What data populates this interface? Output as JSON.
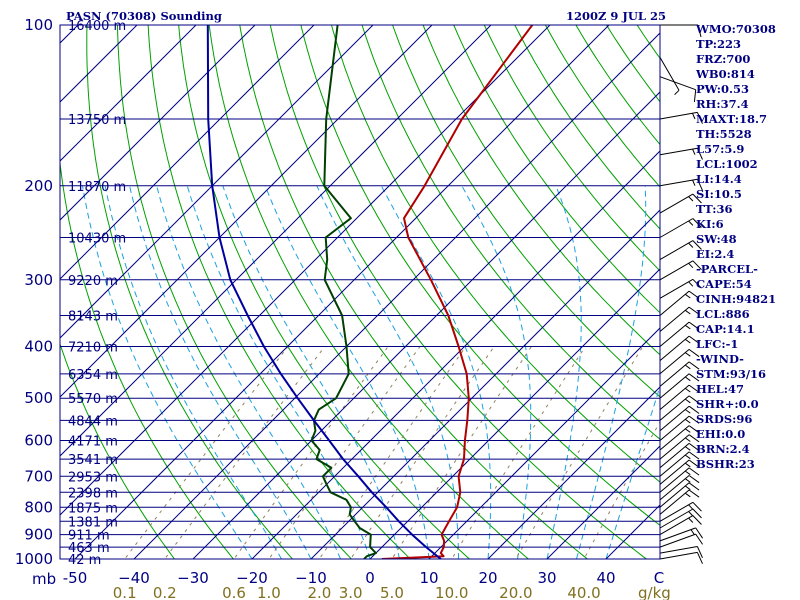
{
  "header": {
    "title": "PASN (70308) Sounding",
    "datetime": "1200Z  9 JUL 25"
  },
  "colors": {
    "isobar": "#000080",
    "isotherm": "#000080",
    "dry_adiabat": "#00a000",
    "moist_adiabat": "#1ca0e0",
    "mixing_ratio": "#908060",
    "temperature": "#b00000",
    "dewpoint": "#004000",
    "parcel": "#0000a0",
    "axis_text": "#000080",
    "mixing_text": "#807020"
  },
  "chart_data": {
    "type": "skew-t",
    "title": "PASN (70308) Sounding",
    "pressure_unit_label": "mb",
    "mixing_unit_label": "g/kg",
    "pressure_ticks": [
      100,
      200,
      300,
      400,
      500,
      600,
      700,
      800,
      900,
      1000
    ],
    "pressure_tick_labels": [
      "100",
      "200",
      "300",
      "400",
      "500",
      "600",
      "700",
      "800",
      "900",
      "1000"
    ],
    "temperature_ticks": [
      -50,
      -40,
      -30,
      -20,
      -10,
      0,
      10,
      20,
      30,
      40
    ],
    "temperature_tick_labels": [
      "-50",
      "−40",
      "−30",
      "−20",
      "−10",
      "0",
      "10",
      "20",
      "30",
      "40"
    ],
    "temperature_end_label": "C",
    "mixing_ratio_ticks": [
      0.1,
      0.2,
      0.6,
      1.0,
      2.0,
      3.0,
      5.0,
      10.0,
      20.0,
      40.0
    ],
    "mixing_ratio_tick_labels": [
      "0.1",
      "0.2",
      "0.6",
      "1.0",
      "2.0",
      "3.0",
      "5.0",
      "10.0",
      "20.0",
      "40.0"
    ],
    "height_levels": [
      {
        "p": 100,
        "label": "16400 m"
      },
      {
        "p": 150,
        "label": "13750 m"
      },
      {
        "p": 200,
        "label": "11870 m"
      },
      {
        "p": 250,
        "label": "10430 m"
      },
      {
        "p": 300,
        "label": "9220 m"
      },
      {
        "p": 350,
        "label": "8143 m"
      },
      {
        "p": 400,
        "label": "7210 m"
      },
      {
        "p": 450,
        "label": "6354 m"
      },
      {
        "p": 500,
        "label": "5570 m"
      },
      {
        "p": 550,
        "label": "4844 m"
      },
      {
        "p": 600,
        "label": "4171 m"
      },
      {
        "p": 650,
        "label": "3541 m"
      },
      {
        "p": 700,
        "label": "2953 m"
      },
      {
        "p": 750,
        "label": "2398 m"
      },
      {
        "p": 800,
        "label": "1875 m"
      },
      {
        "p": 850,
        "label": "1381 m"
      },
      {
        "p": 900,
        "label": "911 m"
      },
      {
        "p": 950,
        "label": "463 m"
      },
      {
        "p": 1000,
        "label": "42 m"
      }
    ],
    "series": [
      {
        "kind": "temperature",
        "points": [
          [
            1000,
            2
          ],
          [
            988,
            12
          ],
          [
            975,
            11
          ],
          [
            950,
            10.5
          ],
          [
            925,
            9.5
          ],
          [
            900,
            8
          ],
          [
            850,
            7
          ],
          [
            800,
            6
          ],
          [
            750,
            4
          ],
          [
            700,
            1
          ],
          [
            650,
            -1
          ],
          [
            600,
            -4
          ],
          [
            550,
            -7
          ],
          [
            500,
            -10.5
          ],
          [
            450,
            -15
          ],
          [
            400,
            -21
          ],
          [
            350,
            -28
          ],
          [
            300,
            -37
          ],
          [
            250,
            -48
          ],
          [
            230,
            -52
          ],
          [
            200,
            -54
          ],
          [
            150,
            -59
          ],
          [
            100,
            -63
          ]
        ]
      },
      {
        "kind": "dewpoint",
        "points": [
          [
            1000,
            -1
          ],
          [
            988,
            -1
          ],
          [
            975,
            0
          ],
          [
            950,
            -2
          ],
          [
            925,
            -3
          ],
          [
            900,
            -4
          ],
          [
            875,
            -7
          ],
          [
            850,
            -9
          ],
          [
            825,
            -11
          ],
          [
            800,
            -12
          ],
          [
            775,
            -14
          ],
          [
            750,
            -18
          ],
          [
            725,
            -20
          ],
          [
            700,
            -22
          ],
          [
            675,
            -22
          ],
          [
            650,
            -26
          ],
          [
            625,
            -27
          ],
          [
            600,
            -30
          ],
          [
            575,
            -31
          ],
          [
            550,
            -33
          ],
          [
            525,
            -34
          ],
          [
            500,
            -33
          ],
          [
            450,
            -35
          ],
          [
            400,
            -40
          ],
          [
            350,
            -46
          ],
          [
            300,
            -55
          ],
          [
            275,
            -58
          ],
          [
            250,
            -62
          ],
          [
            230,
            -61
          ],
          [
            200,
            -71
          ],
          [
            150,
            -82
          ],
          [
            100,
            -96
          ]
        ]
      },
      {
        "kind": "parcel",
        "points": [
          [
            1000,
            12
          ],
          [
            950,
            7.5
          ],
          [
            900,
            3
          ],
          [
            850,
            -1.5
          ],
          [
            800,
            -6
          ],
          [
            750,
            -11
          ],
          [
            700,
            -16
          ],
          [
            650,
            -21.5
          ],
          [
            600,
            -27
          ],
          [
            550,
            -33
          ],
          [
            500,
            -39.5
          ],
          [
            450,
            -46.5
          ],
          [
            400,
            -54
          ],
          [
            350,
            -62
          ],
          [
            300,
            -71
          ],
          [
            250,
            -80
          ],
          [
            200,
            -90
          ],
          [
            150,
            -102
          ],
          [
            100,
            -118
          ]
        ]
      }
    ],
    "wind_barbs": [
      {
        "p": 1000,
        "dir": 80,
        "spd": 10
      },
      {
        "p": 975,
        "dir": 80,
        "spd": 10
      },
      {
        "p": 950,
        "dir": 70,
        "spd": 10
      },
      {
        "p": 925,
        "dir": 70,
        "spd": 15
      },
      {
        "p": 900,
        "dir": 60,
        "spd": 15
      },
      {
        "p": 875,
        "dir": 60,
        "spd": 15
      },
      {
        "p": 850,
        "dir": 60,
        "spd": 15
      },
      {
        "p": 825,
        "dir": 50,
        "spd": 15
      },
      {
        "p": 800,
        "dir": 50,
        "spd": 15
      },
      {
        "p": 775,
        "dir": 50,
        "spd": 15
      },
      {
        "p": 750,
        "dir": 50,
        "spd": 15
      },
      {
        "p": 725,
        "dir": 50,
        "spd": 15
      },
      {
        "p": 700,
        "dir": 50,
        "spd": 15
      },
      {
        "p": 675,
        "dir": 50,
        "spd": 15
      },
      {
        "p": 650,
        "dir": 50,
        "spd": 15
      },
      {
        "p": 625,
        "dir": 50,
        "spd": 15
      },
      {
        "p": 600,
        "dir": 50,
        "spd": 15
      },
      {
        "p": 575,
        "dir": 50,
        "spd": 15
      },
      {
        "p": 550,
        "dir": 50,
        "spd": 15
      },
      {
        "p": 525,
        "dir": 50,
        "spd": 15
      },
      {
        "p": 500,
        "dir": 50,
        "spd": 15
      },
      {
        "p": 475,
        "dir": 50,
        "spd": 15
      },
      {
        "p": 450,
        "dir": 50,
        "spd": 15
      },
      {
        "p": 425,
        "dir": 50,
        "spd": 15
      },
      {
        "p": 400,
        "dir": 50,
        "spd": 15
      },
      {
        "p": 375,
        "dir": 50,
        "spd": 15
      },
      {
        "p": 350,
        "dir": 50,
        "spd": 15
      },
      {
        "p": 325,
        "dir": 60,
        "spd": 15
      },
      {
        "p": 300,
        "dir": 60,
        "spd": 15
      },
      {
        "p": 275,
        "dir": 60,
        "spd": 15
      },
      {
        "p": 250,
        "dir": 60,
        "spd": 15
      },
      {
        "p": 225,
        "dir": 60,
        "spd": 15
      },
      {
        "p": 200,
        "dir": 80,
        "spd": 15
      },
      {
        "p": 175,
        "dir": 80,
        "spd": 15
      },
      {
        "p": 150,
        "dir": 80,
        "spd": 15
      },
      {
        "p": 125,
        "dir": 110,
        "spd": 10
      },
      {
        "p": 115,
        "dir": 150,
        "spd": 5
      },
      {
        "p": 100,
        "dir": 90,
        "spd": 10
      }
    ]
  },
  "indices": [
    "WMO:70308",
    "TP:223",
    "FRZ:700",
    "WB0:814",
    "PW:0.53",
    "RH:37.4",
    "MAXT:18.7",
    "TH:5528",
    "L57:5.9",
    "LCL:1002",
    "LI:14.4",
    "SI:10.5",
    "TT:36",
    "KI:6",
    "SW:48",
    "EI:2.4",
    "-PARCEL-",
    "CAPE:54",
    "CINH:94821",
    "LCL:886",
    "CAP:14.1",
    "LFC:-1",
    "-WIND-",
    "STM:93/16",
    "HEL:47",
    "SHR+:0.0",
    "SRDS:96",
    "EHI:0.0",
    "BRN:2.4",
    "BSHR:23"
  ]
}
